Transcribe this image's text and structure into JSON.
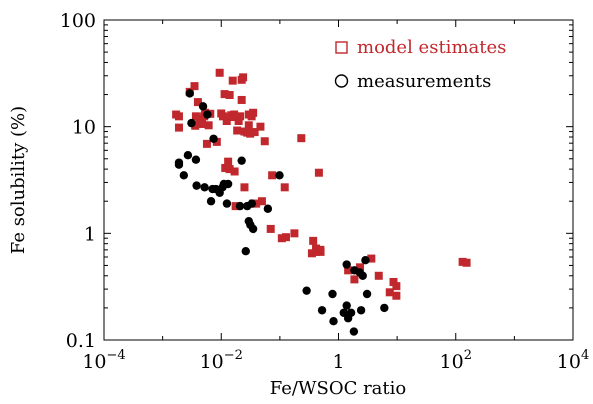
{
  "chart_data": {
    "type": "scatter",
    "title": "",
    "xlabel": "Fe/WSOC ratio",
    "ylabel": "Fe solubility (%)",
    "x_scale": "log",
    "y_scale": "log",
    "xlim": [
      0.0001,
      10000
    ],
    "ylim": [
      0.1,
      100
    ],
    "x_ticks": [
      {
        "value": 0.0001,
        "base": "10",
        "exp": "−4"
      },
      {
        "value": 0.01,
        "base": "10",
        "exp": "−2"
      },
      {
        "value": 1,
        "base": "1",
        "exp": ""
      },
      {
        "value": 100,
        "base": "10",
        "exp": "2"
      },
      {
        "value": 10000,
        "base": "10",
        "exp": "4"
      }
    ],
    "y_ticks": [
      {
        "value": 0.1,
        "label": "0.1"
      },
      {
        "value": 1,
        "label": "1"
      },
      {
        "value": 10,
        "label": "10"
      },
      {
        "value": 100,
        "label": "100"
      }
    ],
    "grid": false,
    "legend_position": "top-right",
    "series": [
      {
        "name": "model estimates",
        "marker": "square",
        "color": "#c0282d",
        "points": [
          [
            0.0017,
            13.0
          ],
          [
            0.0019,
            12.5
          ],
          [
            0.0019,
            9.8
          ],
          [
            0.0029,
            21.2
          ],
          [
            0.0035,
            24.0
          ],
          [
            0.0036,
            10.2
          ],
          [
            0.0037,
            12.5
          ],
          [
            0.004,
            17.0
          ],
          [
            0.0042,
            11.8
          ],
          [
            0.0047,
            10.6
          ],
          [
            0.0051,
            12.5
          ],
          [
            0.0053,
            13.5
          ],
          [
            0.0057,
            6.9
          ],
          [
            0.0061,
            10.3
          ],
          [
            0.0065,
            13.2
          ],
          [
            0.0084,
            7.2
          ],
          [
            0.0094,
            32.0
          ],
          [
            0.01,
            13.3
          ],
          [
            0.0107,
            12.5
          ],
          [
            0.0114,
            20.2
          ],
          [
            0.0117,
            4.1
          ],
          [
            0.0124,
            11.3
          ],
          [
            0.0131,
            4.7
          ],
          [
            0.0139,
            4.0
          ],
          [
            0.0139,
            19.8
          ],
          [
            0.0147,
            12.3
          ],
          [
            0.0148,
            12.8
          ],
          [
            0.0157,
            27.0
          ],
          [
            0.0166,
            13.0
          ],
          [
            0.0169,
            3.8
          ],
          [
            0.0176,
            1.8
          ],
          [
            0.0187,
            9.2
          ],
          [
            0.0198,
            11.3
          ],
          [
            0.021,
            12.5
          ],
          [
            0.0223,
            27.5
          ],
          [
            0.0223,
            17.8
          ],
          [
            0.0236,
            29.0
          ],
          [
            0.0249,
            9.0
          ],
          [
            0.0249,
            2.7
          ],
          [
            0.0277,
            8.8
          ],
          [
            0.0295,
            13.0
          ],
          [
            0.0295,
            10.3
          ],
          [
            0.0312,
            8.6
          ],
          [
            0.033,
            12.5
          ],
          [
            0.035,
            13.5
          ],
          [
            0.035,
            1.9
          ],
          [
            0.0371,
            8.9
          ],
          [
            0.0394,
            1.9
          ],
          [
            0.0466,
            10.0
          ],
          [
            0.0494,
            2.0
          ],
          [
            0.0552,
            7.3
          ],
          [
            0.0698,
            1.1
          ],
          [
            0.0738,
            3.5
          ],
          [
            0.108,
            0.9
          ],
          [
            0.121,
            2.7
          ],
          [
            0.127,
            0.92
          ],
          [
            0.177,
            1.0
          ],
          [
            0.232,
            7.8
          ],
          [
            0.352,
            0.65
          ],
          [
            0.37,
            0.85
          ],
          [
            0.414,
            0.72
          ],
          [
            0.414,
            0.67
          ],
          [
            0.463,
            3.7
          ],
          [
            0.491,
            0.7
          ],
          [
            0.494,
            0.67
          ],
          [
            1.46,
            0.45
          ],
          [
            1.87,
            0.37
          ],
          [
            2.33,
            0.48
          ],
          [
            3.63,
            0.58
          ],
          [
            4.86,
            0.4
          ],
          [
            7.49,
            0.28
          ],
          [
            8.67,
            0.35
          ],
          [
            9.71,
            0.26
          ],
          [
            9.71,
            0.32
          ],
          [
            131,
            0.54
          ],
          [
            153,
            0.53
          ]
        ]
      },
      {
        "name": "measurements",
        "marker": "circle",
        "color": "#000000",
        "points": [
          [
            0.0019,
            4.6
          ],
          [
            0.0019,
            4.4
          ],
          [
            0.0023,
            3.5
          ],
          [
            0.0027,
            5.4
          ],
          [
            0.0029,
            20.5
          ],
          [
            0.0031,
            10.8
          ],
          [
            0.0037,
            4.9
          ],
          [
            0.0038,
            2.8
          ],
          [
            0.0049,
            15.5
          ],
          [
            0.0052,
            2.7
          ],
          [
            0.0058,
            13.0
          ],
          [
            0.0067,
            2.0
          ],
          [
            0.0071,
            2.6
          ],
          [
            0.0074,
            7.7
          ],
          [
            0.0081,
            2.6
          ],
          [
            0.0094,
            2.4
          ],
          [
            0.0105,
            2.7
          ],
          [
            0.0111,
            2.9
          ],
          [
            0.0125,
            1.9
          ],
          [
            0.0131,
            2.9
          ],
          [
            0.0209,
            1.8
          ],
          [
            0.0223,
            4.8
          ],
          [
            0.0262,
            0.68
          ],
          [
            0.0278,
            1.8
          ],
          [
            0.0295,
            1.3
          ],
          [
            0.0314,
            1.2
          ],
          [
            0.0333,
            1.9
          ],
          [
            0.035,
            1.1
          ],
          [
            0.0624,
            1.7
          ],
          [
            0.0985,
            3.5
          ],
          [
            0.286,
            0.29
          ],
          [
            0.524,
            0.19
          ],
          [
            0.79,
            0.27
          ],
          [
            0.822,
            0.15
          ],
          [
            1.23,
            0.18
          ],
          [
            1.38,
            0.51
          ],
          [
            1.38,
            0.21
          ],
          [
            1.46,
            0.16
          ],
          [
            1.64,
            0.18
          ],
          [
            1.83,
            0.12
          ],
          [
            1.87,
            0.45
          ],
          [
            2.3,
            0.43
          ],
          [
            2.43,
            0.19
          ],
          [
            2.59,
            0.4
          ],
          [
            2.88,
            0.56
          ],
          [
            3.07,
            0.27
          ],
          [
            6.05,
            0.2
          ]
        ]
      }
    ]
  }
}
